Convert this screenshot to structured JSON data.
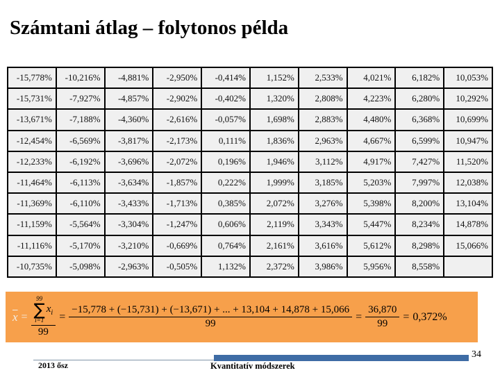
{
  "slide": {
    "title": "Számtani átlag – folytonos példa"
  },
  "table": {
    "rows": [
      [
        "-15,778%",
        "-10,216%",
        "-4,881%",
        "-2,950%",
        "-0,414%",
        "1,152%",
        "2,533%",
        "4,021%",
        "6,182%",
        "10,053%"
      ],
      [
        "-15,731%",
        "-7,927%",
        "-4,857%",
        "-2,902%",
        "-0,402%",
        "1,320%",
        "2,808%",
        "4,223%",
        "6,280%",
        "10,292%"
      ],
      [
        "-13,671%",
        "-7,188%",
        "-4,360%",
        "-2,616%",
        "-0,057%",
        "1,698%",
        "2,883%",
        "4,480%",
        "6,368%",
        "10,699%"
      ],
      [
        "-12,454%",
        "-6,569%",
        "-3,817%",
        "-2,173%",
        "0,111%",
        "1,836%",
        "2,963%",
        "4,667%",
        "6,599%",
        "10,947%"
      ],
      [
        "-12,233%",
        "-6,192%",
        "-3,696%",
        "-2,072%",
        "0,196%",
        "1,946%",
        "3,112%",
        "4,917%",
        "7,427%",
        "11,520%"
      ],
      [
        "-11,464%",
        "-6,113%",
        "-3,634%",
        "-1,857%",
        "0,222%",
        "1,999%",
        "3,185%",
        "5,203%",
        "7,997%",
        "12,038%"
      ],
      [
        "-11,369%",
        "-6,110%",
        "-3,433%",
        "-1,713%",
        "0,385%",
        "2,072%",
        "3,276%",
        "5,398%",
        "8,200%",
        "13,104%"
      ],
      [
        "-11,159%",
        "-5,564%",
        "-3,304%",
        "-1,247%",
        "0,606%",
        "2,119%",
        "3,343%",
        "5,447%",
        "8,234%",
        "14,878%"
      ],
      [
        "-11,116%",
        "-5,170%",
        "-3,210%",
        "-0,669%",
        "0,764%",
        "2,161%",
        "3,616%",
        "5,612%",
        "8,298%",
        "15,066%"
      ],
      [
        "-10,735%",
        "-5,098%",
        "-2,963%",
        "-0,505%",
        "1,132%",
        "2,372%",
        "3,986%",
        "5,956%",
        "8,558%",
        ""
      ]
    ]
  },
  "formula": {
    "mean_symbol": "x",
    "equals": "=",
    "sum_upper_limit": "99",
    "sum_symbol": "∑",
    "sum_lower_limit": "i=1",
    "sum_term_var": "x",
    "sum_term_index": "i",
    "sum_denominator": "99",
    "expansion_numerator": "−15,778 + (−15,731) + (−13,671) + ... + 13,104 + 14,878 + 15,066",
    "expansion_denominator": "99",
    "total_numerator": "36,870",
    "total_denominator": "99",
    "result": "0,372%"
  },
  "footer": {
    "date": "2013 ősz",
    "course": "Kvantitatív módszerek",
    "page": "34"
  },
  "colors": {
    "accent_orange": "#f7a04b",
    "accent_blue": "#3e6ca5",
    "cell_bg": "#f0f0f0",
    "line_gray": "#8195a8"
  }
}
